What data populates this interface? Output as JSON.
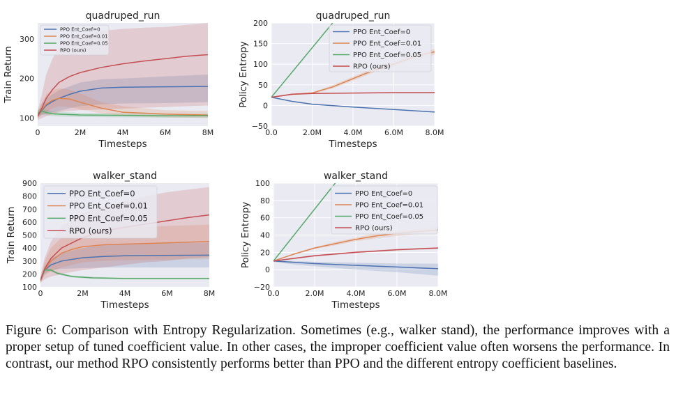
{
  "figure": {
    "caption": "Figure 6: Comparison with Entropy Regularization.  Sometimes (e.g., walker stand), the performance improves with a proper setup of tuned coefficient value. In other cases, the improper coefficient value often worsens the performance. In contrast, our method RPO consistently performs better than PPO and the different entropy coefficient baselines."
  },
  "colors": {
    "blue": "#4c72b0",
    "orange": "#dd8452",
    "green": "#55a868",
    "red": "#c44e52",
    "plot_bg": "#eaeaf2",
    "grid": "#ffffff"
  },
  "chart_data": [
    {
      "type": "line",
      "title": "quadruped_run",
      "xlabel": "Timesteps",
      "ylabel": "Train Return",
      "xlim": [
        0,
        8000000
      ],
      "ylim": [
        80,
        340
      ],
      "xticks": [
        0,
        2000000,
        4000000,
        6000000,
        8000000
      ],
      "xtick_labels": [
        "0",
        "2M",
        "4M",
        "6M",
        "8M"
      ],
      "yticks": [
        100,
        200,
        300
      ],
      "ytick_labels": [
        "100",
        "200",
        "300"
      ],
      "legend": "top-left",
      "grid": false,
      "series": [
        {
          "name": "PPO Ent_Coef=0",
          "color": "#4c72b0",
          "x": [
            0,
            200000,
            400000,
            700000,
            1000000,
            1500000,
            2000000,
            3000000,
            4000000,
            6000000,
            8000000
          ],
          "y": [
            105,
            120,
            132,
            142,
            150,
            160,
            168,
            176,
            178,
            179,
            180
          ],
          "lo": [
            100,
            108,
            110,
            115,
            118,
            125,
            130,
            135,
            137,
            138,
            140
          ],
          "hi": [
            115,
            138,
            150,
            160,
            170,
            180,
            190,
            198,
            200,
            205,
            210
          ]
        },
        {
          "name": "PPO Ent_Coef=0.01",
          "color": "#dd8452",
          "x": [
            0,
            200000,
            400000,
            700000,
            1000000,
            1500000,
            2000000,
            3000000,
            4000000,
            6000000,
            8000000
          ],
          "y": [
            105,
            122,
            135,
            145,
            150,
            148,
            140,
            125,
            115,
            110,
            108
          ],
          "lo": [
            100,
            110,
            115,
            125,
            130,
            128,
            122,
            112,
            105,
            102,
            100
          ],
          "hi": [
            115,
            138,
            160,
            170,
            175,
            172,
            162,
            140,
            130,
            120,
            118
          ]
        },
        {
          "name": "PPO Ent_Coef=0.05",
          "color": "#55a868",
          "x": [
            0,
            200000,
            400000,
            700000,
            1000000,
            2000000,
            4000000,
            6000000,
            8000000
          ],
          "y": [
            112,
            118,
            114,
            111,
            110,
            108,
            107,
            106,
            106
          ],
          "lo": [
            105,
            110,
            107,
            105,
            104,
            103,
            102,
            101,
            101
          ],
          "hi": [
            120,
            126,
            121,
            117,
            116,
            113,
            112,
            111,
            111
          ]
        },
        {
          "name": "RPO (ours)",
          "color": "#c44e52",
          "x": [
            0,
            200000,
            400000,
            700000,
            1000000,
            1500000,
            2000000,
            3000000,
            4000000,
            5000000,
            6000000,
            7000000,
            8000000
          ],
          "y": [
            105,
            125,
            150,
            172,
            190,
            205,
            215,
            228,
            237,
            244,
            250,
            256,
            260
          ],
          "lo": [
            95,
            100,
            105,
            110,
            115,
            118,
            120,
            122,
            124,
            126,
            128,
            130,
            132
          ],
          "hi": [
            120,
            160,
            210,
            250,
            280,
            300,
            310,
            320,
            325,
            328,
            330,
            335,
            340
          ]
        }
      ]
    },
    {
      "type": "line",
      "title": "quadruped_run",
      "xlabel": "Timesteps",
      "ylabel": "Policy Entropy",
      "xlim": [
        0,
        8000000
      ],
      "ylim": [
        -50,
        200
      ],
      "xticks": [
        0,
        2000000,
        4000000,
        6000000,
        8000000
      ],
      "xtick_labels": [
        "0.0",
        "2.0M",
        "4.0M",
        "6.0M",
        "8.0M"
      ],
      "yticks": [
        -50,
        0,
        50,
        100,
        150,
        200
      ],
      "ytick_labels": [
        "−50",
        "0",
        "50",
        "100",
        "150",
        "200"
      ],
      "legend": "top-right",
      "grid": true,
      "series": [
        {
          "name": "PPO Ent_Coef=0",
          "color": "#4c72b0",
          "x": [
            0,
            1000000,
            2000000,
            4000000,
            6000000,
            8000000
          ],
          "y": [
            20,
            10,
            3,
            -4,
            -10,
            -16
          ],
          "lo": [
            20,
            9,
            2,
            -5,
            -11,
            -17
          ],
          "hi": [
            20,
            11,
            4,
            -3,
            -9,
            -15
          ]
        },
        {
          "name": "PPO Ent_Coef=0.01",
          "color": "#dd8452",
          "x": [
            0,
            1000000,
            2000000,
            3000000,
            4000000,
            5000000,
            6000000,
            7000000,
            8000000
          ],
          "y": [
            20,
            27,
            30,
            45,
            65,
            85,
            100,
            118,
            130
          ],
          "lo": [
            20,
            25,
            28,
            41,
            60,
            80,
            94,
            112,
            123
          ],
          "hi": [
            20,
            29,
            32,
            49,
            70,
            90,
            106,
            124,
            137
          ]
        },
        {
          "name": "PPO Ent_Coef=0.05",
          "color": "#55a868",
          "x": [
            0,
            3000000
          ],
          "y": [
            20,
            200
          ],
          "lo": [
            20,
            199
          ],
          "hi": [
            20,
            201
          ]
        },
        {
          "name": "RPO (ours)",
          "color": "#c44e52",
          "x": [
            0,
            1000000,
            2000000,
            4000000,
            6000000,
            8000000
          ],
          "y": [
            20,
            27,
            29,
            30,
            31,
            31
          ],
          "lo": [
            20,
            26,
            28,
            29,
            30,
            30
          ],
          "hi": [
            20,
            28,
            30,
            31,
            32,
            32
          ]
        }
      ]
    },
    {
      "type": "line",
      "title": "walker_stand",
      "xlabel": "Timesteps",
      "ylabel": "Train Return",
      "xlim": [
        0,
        8000000
      ],
      "ylim": [
        100,
        900
      ],
      "xticks": [
        0,
        2000000,
        4000000,
        6000000,
        8000000
      ],
      "xtick_labels": [
        "0",
        "2M",
        "4M",
        "6M",
        "8M"
      ],
      "yticks": [
        100,
        200,
        300,
        400,
        500,
        600,
        700,
        800,
        900
      ],
      "ytick_labels": [
        "100",
        "200",
        "300",
        "400",
        "500",
        "600",
        "700",
        "800",
        "900"
      ],
      "legend": "top-left",
      "grid": false,
      "series": [
        {
          "name": "PPO Ent_Coef=0",
          "color": "#4c72b0",
          "x": [
            0,
            200000,
            500000,
            1000000,
            2000000,
            3000000,
            4000000,
            6000000,
            8000000
          ],
          "y": [
            150,
            230,
            270,
            300,
            325,
            335,
            340,
            343,
            345
          ],
          "lo": [
            130,
            200,
            230,
            240,
            245,
            250,
            250,
            250,
            250
          ],
          "hi": [
            170,
            260,
            320,
            360,
            400,
            420,
            430,
            440,
            440
          ]
        },
        {
          "name": "PPO Ent_Coef=0.01",
          "color": "#dd8452",
          "x": [
            0,
            200000,
            500000,
            1000000,
            1500000,
            2000000,
            3000000,
            4000000,
            6000000,
            8000000
          ],
          "y": [
            150,
            230,
            300,
            360,
            390,
            410,
            425,
            430,
            440,
            450
          ],
          "lo": [
            130,
            190,
            220,
            250,
            270,
            290,
            300,
            305,
            310,
            315
          ],
          "hi": [
            170,
            300,
            400,
            480,
            520,
            540,
            550,
            560,
            570,
            580
          ]
        },
        {
          "name": "PPO Ent_Coef=0.05",
          "color": "#55a868",
          "x": [
            0,
            200000,
            500000,
            800000,
            1500000,
            2500000,
            4000000,
            6000000,
            8000000
          ],
          "y": [
            150,
            230,
            230,
            205,
            180,
            170,
            165,
            165,
            165
          ],
          "lo": [
            140,
            220,
            220,
            195,
            172,
            162,
            158,
            158,
            158
          ],
          "hi": [
            160,
            240,
            240,
            215,
            188,
            178,
            172,
            172,
            172
          ]
        },
        {
          "name": "RPO (ours)",
          "color": "#c44e52",
          "x": [
            0,
            200000,
            500000,
            1000000,
            2000000,
            3000000,
            4000000,
            5000000,
            6000000,
            7000000,
            8000000
          ],
          "y": [
            150,
            240,
            320,
            400,
            480,
            530,
            560,
            585,
            610,
            635,
            655
          ],
          "lo": [
            130,
            160,
            180,
            200,
            230,
            250,
            270,
            290,
            300,
            320,
            330
          ],
          "hi": [
            180,
            320,
            450,
            570,
            670,
            720,
            760,
            800,
            830,
            850,
            870
          ]
        }
      ]
    },
    {
      "type": "line",
      "title": "walker_stand",
      "xlabel": "Timesteps",
      "ylabel": "Policy Entropy",
      "xlim": [
        0,
        8000000
      ],
      "ylim": [
        -20,
        100
      ],
      "xticks": [
        0,
        2000000,
        4000000,
        6000000,
        8000000
      ],
      "xtick_labels": [
        "0.0",
        "2.0M",
        "4.0M",
        "6.0M",
        "8.0M"
      ],
      "yticks": [
        -20,
        0,
        20,
        40,
        60,
        80,
        100
      ],
      "ytick_labels": [
        "−20",
        "0",
        "20",
        "40",
        "60",
        "80",
        "100"
      ],
      "legend": "top-right",
      "grid": true,
      "series": [
        {
          "name": "PPO Ent_Coef=0",
          "color": "#4c72b0",
          "x": [
            0,
            1000000,
            2000000,
            4000000,
            6000000,
            8000000
          ],
          "y": [
            10,
            8.5,
            7,
            5,
            3,
            1
          ],
          "lo": [
            9,
            6,
            4,
            0,
            -3,
            -7
          ],
          "hi": [
            11,
            10,
            9,
            8,
            7,
            7
          ]
        },
        {
          "name": "PPO Ent_Coef=0.01",
          "color": "#dd8452",
          "x": [
            0,
            1000000,
            2000000,
            3000000,
            4000000,
            5000000,
            6000000,
            7000000,
            8000000
          ],
          "y": [
            10,
            18,
            25,
            30,
            35,
            39,
            42,
            44,
            46
          ],
          "lo": [
            10,
            17,
            24,
            28,
            33,
            36,
            39,
            41,
            43
          ],
          "hi": [
            10,
            19,
            26,
            32,
            37,
            42,
            45,
            47,
            49
          ]
        },
        {
          "name": "PPO Ent_Coef=0.05",
          "color": "#55a868",
          "x": [
            0,
            3000000
          ],
          "y": [
            10,
            100
          ],
          "lo": [
            10,
            99
          ],
          "hi": [
            10,
            101
          ]
        },
        {
          "name": "RPO (ours)",
          "color": "#c44e52",
          "x": [
            0,
            1000000,
            2000000,
            3000000,
            4000000,
            5000000,
            6000000,
            7000000,
            8000000
          ],
          "y": [
            10,
            13,
            16,
            18,
            20,
            21.5,
            23,
            24,
            25
          ],
          "lo": [
            10,
            12,
            15,
            17,
            19,
            20.5,
            22,
            23,
            24
          ],
          "hi": [
            10,
            14,
            17,
            19,
            21,
            22.5,
            24,
            25,
            26
          ]
        }
      ]
    }
  ]
}
